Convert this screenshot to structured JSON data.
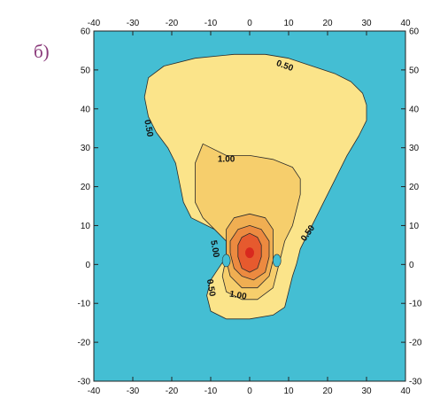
{
  "panel_label": "б)",
  "colors": {
    "background": "#44bed3",
    "level_050": "#fbe48a",
    "level_100": "#f6ce6c",
    "level_200": "#f0ae52",
    "level_300": "#ec8a40",
    "level_500": "#e65a2e",
    "peak": "#d8281e",
    "contour_line": "#2a2a2a"
  },
  "chart_data": {
    "type": "heatmap",
    "title": "",
    "xlabel": "",
    "ylabel": "",
    "xlim": [
      -40,
      40
    ],
    "ylim": [
      -30,
      60
    ],
    "x_ticks": [
      -40,
      -30,
      -20,
      -10,
      0,
      10,
      20,
      30,
      40
    ],
    "y_ticks": [
      -30,
      -20,
      -10,
      0,
      10,
      20,
      30,
      40,
      50,
      60
    ],
    "x_tick_labels": [
      "-40",
      "-30",
      "-20",
      "-10",
      "0",
      "10",
      "20",
      "30",
      "40"
    ],
    "y_tick_labels": [
      "-30",
      "-20",
      "-10",
      "0",
      "10",
      "20",
      "30",
      "40",
      "50",
      "60"
    ],
    "grid": false,
    "contour_levels": [
      0.5,
      1.0,
      2.0,
      3.0,
      5.0
    ],
    "contours": [
      {
        "level": 0.5,
        "points": [
          [
            -26,
            48
          ],
          [
            -22,
            51
          ],
          [
            -14,
            53
          ],
          [
            -4,
            54
          ],
          [
            4,
            54
          ],
          [
            10,
            53
          ],
          [
            16,
            51
          ],
          [
            22,
            49
          ],
          [
            26,
            47
          ],
          [
            29,
            44
          ],
          [
            30,
            41
          ],
          [
            30,
            37
          ],
          [
            28,
            33
          ],
          [
            25,
            28
          ],
          [
            22,
            22
          ],
          [
            19,
            16
          ],
          [
            17,
            12
          ],
          [
            15,
            8
          ],
          [
            13,
            4
          ],
          [
            12,
            0
          ],
          [
            11,
            -3
          ],
          [
            10,
            -7
          ],
          [
            9,
            -11
          ],
          [
            6,
            -13
          ],
          [
            0,
            -14
          ],
          [
            -6,
            -14
          ],
          [
            -10,
            -12
          ],
          [
            -11,
            -8
          ],
          [
            -10,
            -4
          ],
          [
            -8,
            -1
          ],
          [
            -6,
            2
          ],
          [
            -5,
            5
          ],
          [
            -7,
            8
          ],
          [
            -11,
            10
          ],
          [
            -15,
            12
          ],
          [
            -17,
            16
          ],
          [
            -18,
            21
          ],
          [
            -19,
            26
          ],
          [
            -21,
            30
          ],
          [
            -24,
            34
          ],
          [
            -26,
            38
          ],
          [
            -27,
            43
          ]
        ]
      },
      {
        "level": 1.0,
        "points": [
          [
            -12,
            31
          ],
          [
            -6,
            28
          ],
          [
            0,
            28
          ],
          [
            6,
            27
          ],
          [
            11,
            25
          ],
          [
            13,
            22
          ],
          [
            13,
            18
          ],
          [
            12,
            14
          ],
          [
            11,
            10
          ],
          [
            9,
            6
          ],
          [
            8,
            2
          ],
          [
            7,
            -2
          ],
          [
            6,
            -6
          ],
          [
            2,
            -9
          ],
          [
            -2,
            -9
          ],
          [
            -6,
            -7
          ],
          [
            -7,
            -3
          ],
          [
            -6,
            2
          ],
          [
            -6,
            6
          ],
          [
            -9,
            9
          ],
          [
            -12,
            12
          ],
          [
            -14,
            16
          ],
          [
            -14,
            21
          ],
          [
            -14,
            26
          ]
        ]
      },
      {
        "level": 2.0,
        "points": [
          [
            -4,
            12
          ],
          [
            0,
            13
          ],
          [
            4,
            12
          ],
          [
            6,
            9
          ],
          [
            6,
            5
          ],
          [
            6,
            1
          ],
          [
            5,
            -3
          ],
          [
            2,
            -6
          ],
          [
            -2,
            -6
          ],
          [
            -5,
            -3
          ],
          [
            -6,
            1
          ],
          [
            -6,
            5
          ],
          [
            -6,
            9
          ]
        ]
      },
      {
        "level": 3.0,
        "points": [
          [
            -3,
            9
          ],
          [
            0,
            10
          ],
          [
            3,
            9
          ],
          [
            5,
            6
          ],
          [
            5,
            2
          ],
          [
            4,
            -2
          ],
          [
            1,
            -4
          ],
          [
            -2,
            -3
          ],
          [
            -4,
            -1
          ],
          [
            -5,
            3
          ],
          [
            -5,
            6
          ]
        ]
      },
      {
        "level": 5.0,
        "points": [
          [
            -2,
            7
          ],
          [
            0,
            8
          ],
          [
            2,
            7
          ],
          [
            3,
            5
          ],
          [
            3,
            2
          ],
          [
            2,
            -1
          ],
          [
            0,
            -2
          ],
          [
            -2,
            -1
          ],
          [
            -3,
            2
          ],
          [
            -3,
            5
          ]
        ]
      }
    ],
    "peak": {
      "x": 0,
      "y": 3
    },
    "low_spots": [
      {
        "x": -6,
        "y": 1
      },
      {
        "x": 7,
        "y": 1
      }
    ],
    "contour_labels": [
      {
        "text": "0.50",
        "x": 9,
        "y": 51,
        "rotation": 20
      },
      {
        "text": "0.50",
        "x": -26,
        "y": 35,
        "rotation": 80
      },
      {
        "text": "0.50",
        "x": 15,
        "y": 8,
        "rotation": -55
      },
      {
        "text": "0.50",
        "x": -10,
        "y": -6,
        "rotation": 80
      },
      {
        "text": "1.00",
        "x": -6,
        "y": 27,
        "rotation": 0
      },
      {
        "text": "1.00",
        "x": -3,
        "y": -8,
        "rotation": 10
      },
      {
        "text": "5.00",
        "x": -9,
        "y": 4,
        "rotation": 80
      }
    ]
  }
}
